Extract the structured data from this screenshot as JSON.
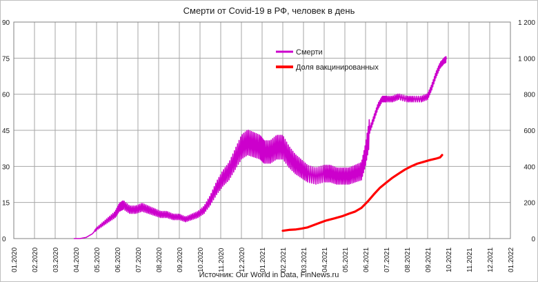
{
  "chart_data": {
    "type": "line",
    "title": "Смерти от Covid-19 в РФ, человек в день",
    "source": "Источник: Our World in Data, FinNews.ru",
    "legend": {
      "position": "top-right",
      "entries": [
        "Смерти",
        "Доля вакцинированных"
      ]
    },
    "x_tick_labels": [
      "01.2020",
      "02.2020",
      "03.2020",
      "04.2020",
      "05.2020",
      "06.2020",
      "07.2020",
      "08.2020",
      "09.2020",
      "10.2020",
      "11.2020",
      "12.2020",
      "01.2021",
      "02.2021",
      "03.2021",
      "04.2021",
      "05.2021",
      "06.2021",
      "07.2021",
      "08.2021",
      "09.2021",
      "10.2021",
      "11.2021",
      "12.2021",
      "01.2022"
    ],
    "y_left": {
      "min": 0,
      "max": 90,
      "step": 15,
      "tick_labels": [
        "0",
        "15",
        "30",
        "45",
        "60",
        "75",
        "90"
      ]
    },
    "y_right": {
      "min": 0,
      "max": 1200,
      "step": 200,
      "tick_labels": [
        "0",
        "200",
        "400",
        "600",
        "800",
        "1 000",
        "1 200"
      ]
    },
    "gridlines": true,
    "series": [
      {
        "name": "Смерти",
        "axis": "left",
        "color": "#cc00cc",
        "points_month_index_value": [
          [
            2.9,
            0
          ],
          [
            3.2,
            0
          ],
          [
            3.5,
            0.5
          ],
          [
            3.8,
            2
          ],
          [
            4.0,
            4
          ],
          [
            4.3,
            6
          ],
          [
            4.6,
            8
          ],
          [
            4.9,
            10
          ],
          [
            5.1,
            13
          ],
          [
            5.3,
            14
          ],
          [
            5.6,
            12
          ],
          [
            5.9,
            12
          ],
          [
            6.2,
            13
          ],
          [
            6.5,
            12
          ],
          [
            6.8,
            11
          ],
          [
            7.1,
            10
          ],
          [
            7.4,
            10
          ],
          [
            7.7,
            9
          ],
          [
            8.0,
            9
          ],
          [
            8.3,
            8
          ],
          [
            8.6,
            9
          ],
          [
            8.9,
            10
          ],
          [
            9.2,
            12
          ],
          [
            9.5,
            16
          ],
          [
            9.8,
            21
          ],
          [
            10.1,
            25
          ],
          [
            10.4,
            28
          ],
          [
            10.7,
            33
          ],
          [
            11.0,
            38
          ],
          [
            11.3,
            40
          ],
          [
            11.6,
            39
          ],
          [
            11.9,
            38
          ],
          [
            12.1,
            36
          ],
          [
            12.4,
            36
          ],
          [
            12.7,
            38
          ],
          [
            13.0,
            38
          ],
          [
            13.3,
            34
          ],
          [
            13.6,
            31
          ],
          [
            13.9,
            29
          ],
          [
            14.2,
            27
          ],
          [
            14.6,
            26
          ],
          [
            15.0,
            27
          ],
          [
            15.3,
            27
          ],
          [
            15.6,
            26
          ],
          [
            15.9,
            26
          ],
          [
            16.2,
            26
          ],
          [
            16.5,
            27
          ],
          [
            16.8,
            28
          ],
          [
            17.0,
            35
          ],
          [
            17.2,
            45
          ],
          [
            17.4,
            50
          ],
          [
            17.6,
            55
          ],
          [
            17.8,
            58
          ],
          [
            18.0,
            58
          ],
          [
            18.3,
            58
          ],
          [
            18.6,
            59
          ],
          [
            19.0,
            58
          ],
          [
            19.3,
            58
          ],
          [
            19.7,
            58
          ],
          [
            20.0,
            59
          ],
          [
            20.2,
            63
          ],
          [
            20.4,
            68
          ],
          [
            20.6,
            72
          ],
          [
            20.8,
            74
          ],
          [
            20.9,
            74.5
          ]
        ]
      },
      {
        "name": "Доля вакцинированных",
        "axis": "right",
        "color": "#ff0000",
        "points_month_index_value": [
          [
            13.0,
            43
          ],
          [
            13.3,
            48
          ],
          [
            13.6,
            50
          ],
          [
            13.9,
            55
          ],
          [
            14.2,
            62
          ],
          [
            14.5,
            75
          ],
          [
            14.8,
            88
          ],
          [
            15.1,
            100
          ],
          [
            15.5,
            112
          ],
          [
            15.9,
            125
          ],
          [
            16.2,
            138
          ],
          [
            16.5,
            150
          ],
          [
            16.8,
            170
          ],
          [
            17.1,
            205
          ],
          [
            17.4,
            245
          ],
          [
            17.7,
            282
          ],
          [
            18.0,
            310
          ],
          [
            18.3,
            337
          ],
          [
            18.6,
            360
          ],
          [
            18.9,
            382
          ],
          [
            19.2,
            400
          ],
          [
            19.5,
            415
          ],
          [
            19.8,
            425
          ],
          [
            20.1,
            435
          ],
          [
            20.4,
            443
          ],
          [
            20.6,
            450
          ],
          [
            20.7,
            463
          ]
        ]
      }
    ]
  }
}
